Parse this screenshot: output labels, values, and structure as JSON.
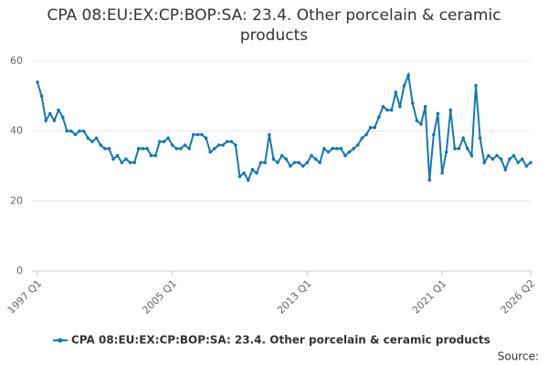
{
  "chart_data": {
    "type": "line",
    "title": "CPA 08:EU:EX:CP:BOP:SA: 23.4. Other porcelain & ceramic products",
    "source": "Source:",
    "categories": [
      "1997 Q1",
      null,
      null,
      null,
      null,
      null,
      null,
      null,
      null,
      null,
      null,
      null,
      null,
      null,
      null,
      null,
      null,
      null,
      null,
      null,
      null,
      null,
      null,
      null,
      null,
      null,
      null,
      null,
      null,
      null,
      null,
      null,
      "2005 Q1",
      null,
      null,
      null,
      null,
      null,
      null,
      null,
      null,
      null,
      null,
      null,
      null,
      null,
      null,
      null,
      null,
      null,
      null,
      null,
      null,
      null,
      null,
      null,
      null,
      null,
      null,
      null,
      null,
      null,
      null,
      null,
      "2013 Q1",
      null,
      null,
      null,
      null,
      null,
      null,
      null,
      null,
      null,
      null,
      null,
      null,
      null,
      null,
      null,
      null,
      null,
      null,
      null,
      null,
      null,
      null,
      null,
      null,
      null,
      null,
      null,
      null,
      null,
      null,
      null,
      "2021 Q1",
      null,
      null,
      null,
      null,
      null,
      null,
      null,
      null,
      null,
      null,
      null,
      null,
      null,
      null,
      null,
      null,
      null,
      null,
      null,
      null,
      "2026 Q2"
    ],
    "series": [
      {
        "name": "CPA 08:EU:EX:CP:BOP:SA: 23.4. Other porcelain & ceramic products",
        "color": "#1279b5",
        "values": [
          54,
          50,
          43,
          45,
          43,
          46,
          44,
          40,
          40,
          39,
          40,
          40,
          38,
          37,
          38,
          36,
          35,
          35,
          32,
          33,
          31,
          32,
          31,
          31,
          35,
          35,
          35,
          33,
          33,
          37,
          37,
          38,
          36,
          35,
          35,
          36,
          35,
          39,
          39,
          39,
          38,
          34,
          35,
          36,
          36,
          37,
          37,
          36,
          27,
          28,
          26,
          29,
          28,
          31,
          31,
          39,
          32,
          31,
          33,
          32,
          30,
          31,
          31,
          30,
          31,
          33,
          32,
          31,
          35,
          34,
          35,
          35,
          35,
          33,
          34,
          35,
          36,
          38,
          39,
          41,
          41,
          44,
          47,
          46,
          46,
          51,
          47,
          53,
          56,
          48,
          43,
          42,
          47,
          26,
          39,
          45,
          28,
          34,
          46,
          35,
          35,
          38,
          35,
          33,
          53,
          38,
          31,
          33,
          32,
          33,
          32,
          29,
          32,
          33,
          31,
          32,
          30,
          31
        ]
      }
    ],
    "ylim": [
      0,
      60
    ],
    "yticks": [
      0,
      20,
      40,
      60
    ],
    "grid": true,
    "legend": "bottom"
  }
}
